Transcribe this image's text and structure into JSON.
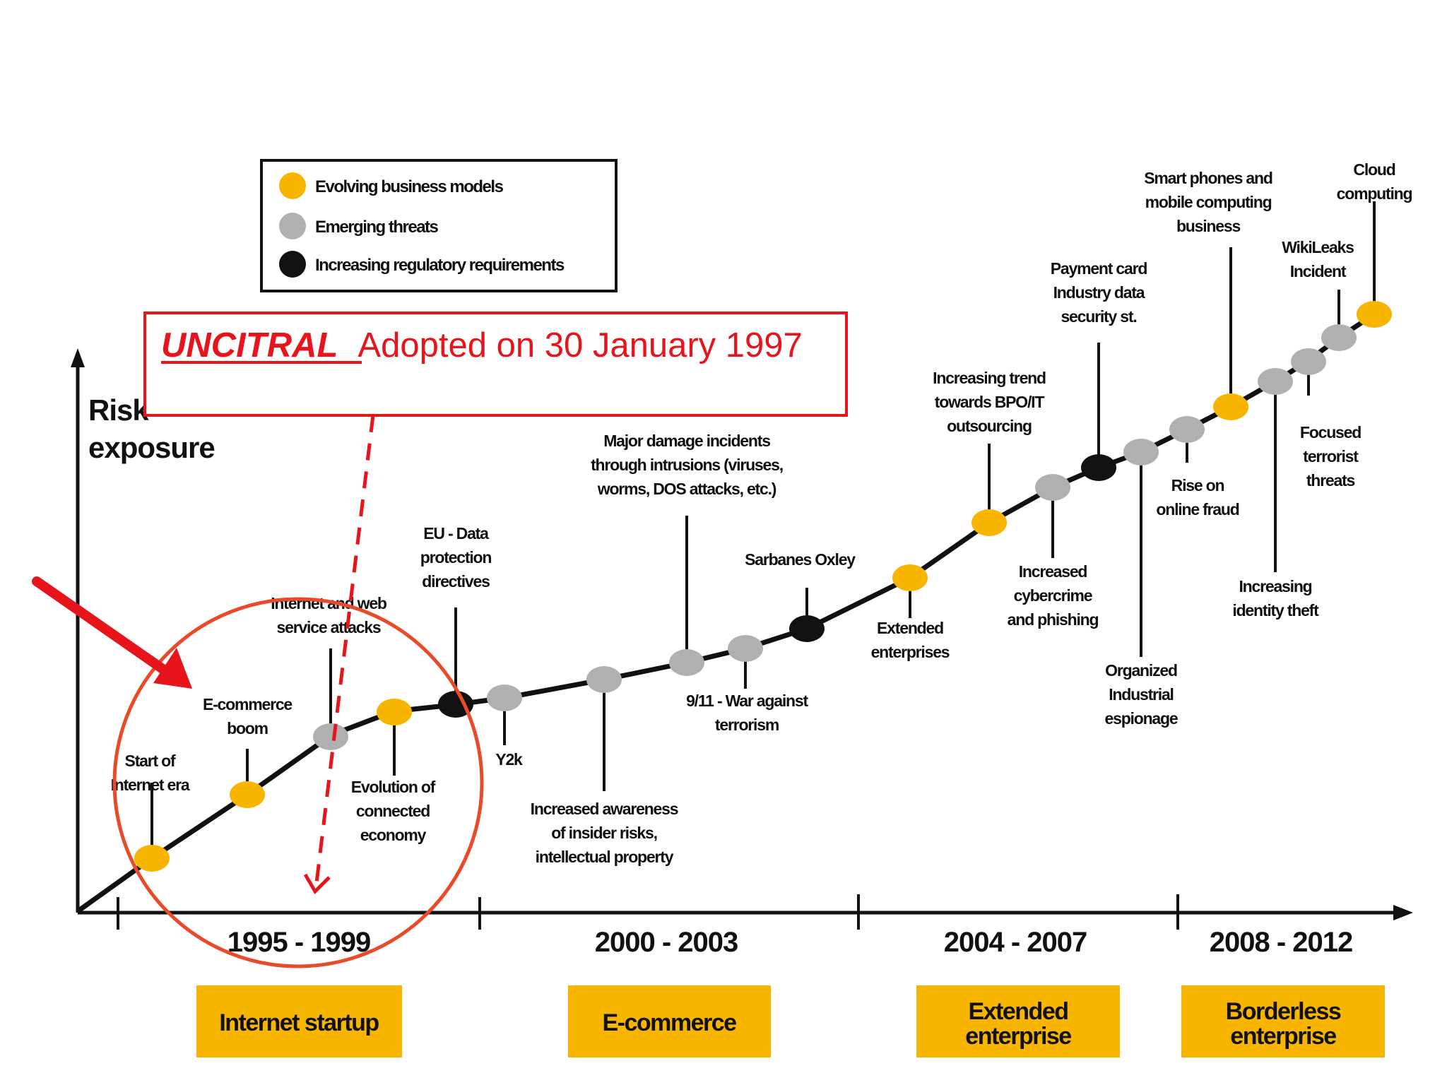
{
  "legend": [
    {
      "label": "Evolving business models",
      "color": "#f7b500"
    },
    {
      "label": "Emerging threats",
      "color": "#b0b0b0"
    },
    {
      "label": "Increasing regulatory requirements",
      "color": "#111111"
    }
  ],
  "axis": {
    "y_label_1": "Risk",
    "y_label_2": "exposure"
  },
  "annotation": {
    "highlight": "UNCITRAL",
    "text": "Adopted on 30 January 1997"
  },
  "periods": [
    "1995 - 1999",
    "2000 - 2003",
    "2004 - 2007",
    "2008 - 2012"
  ],
  "phases": [
    {
      "lines": [
        "Internet startup"
      ]
    },
    {
      "lines": [
        "E-commerce"
      ]
    },
    {
      "lines": [
        "Extended",
        "enterprise"
      ]
    },
    {
      "lines": [
        "Borderless",
        "enterprise"
      ]
    }
  ],
  "events": [
    {
      "type": "business",
      "lines": [
        "Start of",
        "Internet era"
      ]
    },
    {
      "type": "business",
      "lines": [
        "E-commerce",
        "boom"
      ]
    },
    {
      "type": "threat",
      "lines": [
        "Internet and web",
        "service attacks"
      ]
    },
    {
      "type": "business",
      "lines": [
        "Evolution of",
        "connected",
        "economy"
      ]
    },
    {
      "type": "regulatory",
      "lines": [
        "EU - Data",
        "protection",
        "directives"
      ]
    },
    {
      "type": "threat",
      "lines": [
        "Y2k"
      ]
    },
    {
      "type": "threat",
      "lines": [
        "Increased awareness",
        "of insider risks,",
        "intellectual property"
      ]
    },
    {
      "type": "threat",
      "lines": [
        "Major damage incidents",
        "through intrusions (viruses,",
        "worms, DOS attacks, etc.)"
      ]
    },
    {
      "type": "threat",
      "lines": [
        "9/11 - War against",
        "terrorism"
      ]
    },
    {
      "type": "regulatory",
      "lines": [
        "Sarbanes Oxley"
      ]
    },
    {
      "type": "business",
      "lines": [
        "Extended",
        "enterprises"
      ]
    },
    {
      "type": "business",
      "lines": [
        "Increasing trend",
        "towards BPO/IT",
        "outsourcing"
      ]
    },
    {
      "type": "threat",
      "lines": [
        "Increased",
        "cybercrime",
        "and phishing"
      ]
    },
    {
      "type": "regulatory",
      "lines": [
        "Payment card",
        "Industry data",
        "security st."
      ]
    },
    {
      "type": "threat",
      "lines": [
        "Organized",
        "Industrial",
        "espionage"
      ]
    },
    {
      "type": "threat",
      "lines": [
        "Rise on",
        "online fraud"
      ]
    },
    {
      "type": "business",
      "lines": [
        "Smart phones and",
        "mobile computing",
        "business"
      ]
    },
    {
      "type": "threat",
      "lines": [
        "Increasing",
        "identity theft"
      ]
    },
    {
      "type": "threat",
      "lines": [
        "Focused",
        "terrorist",
        "threats"
      ]
    },
    {
      "type": "threat",
      "lines": [
        "WikiLeaks",
        "Incident"
      ]
    },
    {
      "type": "business",
      "lines": [
        "Cloud",
        "computing"
      ]
    }
  ]
}
